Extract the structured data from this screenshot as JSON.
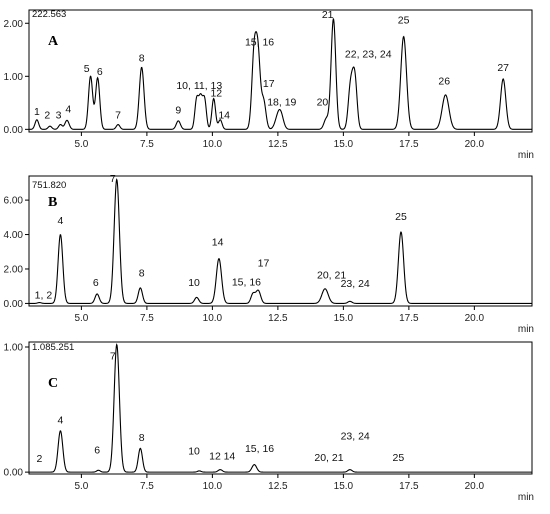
{
  "chart_data": [
    {
      "type": "line",
      "panel_label": "A",
      "header_value": "222.563",
      "xlabel": "min",
      "xlim": [
        3.0,
        22.2
      ],
      "ylim": [
        -0.05,
        2.25
      ],
      "x_ticks": [
        5.0,
        7.5,
        10.0,
        12.5,
        15.0,
        17.5,
        20.0
      ],
      "x_tick_labels": [
        "5.0",
        "7.5",
        "10.0",
        "12.5",
        "15.0",
        "17.5",
        "20.0"
      ],
      "y_ticks": [
        0.0,
        1.0,
        2.0
      ],
      "y_tick_labels": [
        "0.00",
        "1.00",
        "2.00"
      ],
      "baseline": 0.0,
      "peaks": [
        {
          "rt": 3.3,
          "height": 0.18,
          "width": 0.07
        },
        {
          "rt": 3.8,
          "height": 0.06,
          "width": 0.07
        },
        {
          "rt": 4.2,
          "height": 0.09,
          "width": 0.07
        },
        {
          "rt": 4.45,
          "height": 0.17,
          "width": 0.08
        },
        {
          "rt": 5.35,
          "height": 1.0,
          "width": 0.08
        },
        {
          "rt": 5.62,
          "height": 0.97,
          "width": 0.08
        },
        {
          "rt": 6.4,
          "height": 0.09,
          "width": 0.07
        },
        {
          "rt": 7.3,
          "height": 1.17,
          "width": 0.09
        },
        {
          "rt": 8.7,
          "height": 0.16,
          "width": 0.08
        },
        {
          "rt": 9.4,
          "height": 0.56,
          "width": 0.07
        },
        {
          "rt": 9.55,
          "height": 0.56,
          "width": 0.07
        },
        {
          "rt": 9.7,
          "height": 0.56,
          "width": 0.07
        },
        {
          "rt": 10.05,
          "height": 0.58,
          "width": 0.07
        },
        {
          "rt": 10.3,
          "height": 0.18,
          "width": 0.07
        },
        {
          "rt": 11.6,
          "height": 1.5,
          "width": 0.09
        },
        {
          "rt": 11.75,
          "height": 1.2,
          "width": 0.08
        },
        {
          "rt": 11.95,
          "height": 0.55,
          "width": 0.09
        },
        {
          "rt": 12.5,
          "height": 0.22,
          "width": 0.11
        },
        {
          "rt": 12.62,
          "height": 0.22,
          "width": 0.1
        },
        {
          "rt": 14.35,
          "height": 0.2,
          "width": 0.09
        },
        {
          "rt": 14.62,
          "height": 2.08,
          "width": 0.09
        },
        {
          "rt": 15.25,
          "height": 0.6,
          "width": 0.08
        },
        {
          "rt": 15.35,
          "height": 0.5,
          "width": 0.08
        },
        {
          "rt": 15.45,
          "height": 0.8,
          "width": 0.08
        },
        {
          "rt": 17.3,
          "height": 1.75,
          "width": 0.11
        },
        {
          "rt": 18.9,
          "height": 0.65,
          "width": 0.13
        },
        {
          "rt": 21.1,
          "height": 0.95,
          "width": 0.1
        }
      ],
      "labels": [
        {
          "text": "1",
          "x": 3.3,
          "y": 0.27
        },
        {
          "text": "2",
          "x": 3.7,
          "y": 0.2
        },
        {
          "text": "3",
          "x": 4.13,
          "y": 0.2
        },
        {
          "text": "4",
          "x": 4.5,
          "y": 0.32
        },
        {
          "text": "5",
          "x": 5.2,
          "y": 1.08
        },
        {
          "text": "6",
          "x": 5.7,
          "y": 1.02
        },
        {
          "text": "7",
          "x": 6.4,
          "y": 0.2
        },
        {
          "text": "8",
          "x": 7.3,
          "y": 1.28
        },
        {
          "text": "9",
          "x": 8.7,
          "y": 0.3
        },
        {
          "text": "10, 11, 13",
          "x": 9.5,
          "y": 0.76
        },
        {
          "text": "12",
          "x": 10.15,
          "y": 0.62
        },
        {
          "text": "14",
          "x": 10.45,
          "y": 0.2
        },
        {
          "text": "15, 16",
          "x": 11.8,
          "y": 1.58
        },
        {
          "text": "17",
          "x": 12.15,
          "y": 0.8
        },
        {
          "text": "18, 19",
          "x": 12.65,
          "y": 0.45
        },
        {
          "text": "20",
          "x": 14.2,
          "y": 0.45
        },
        {
          "text": "21",
          "x": 14.4,
          "y": 2.1
        },
        {
          "text": "22, 23, 24",
          "x": 15.95,
          "y": 1.35
        },
        {
          "text": "25",
          "x": 17.3,
          "y": 2.0
        },
        {
          "text": "26",
          "x": 18.85,
          "y": 0.85
        },
        {
          "text": "27",
          "x": 21.1,
          "y": 1.1
        }
      ]
    },
    {
      "type": "line",
      "panel_label": "B",
      "header_value": "751.820",
      "xlabel": "min",
      "xlim": [
        3.0,
        22.2
      ],
      "ylim": [
        -0.15,
        7.4
      ],
      "x_ticks": [
        5.0,
        7.5,
        10.0,
        12.5,
        15.0,
        17.5,
        20.0
      ],
      "x_tick_labels": [
        "5.0",
        "7.5",
        "10.0",
        "12.5",
        "15.0",
        "17.5",
        "20.0"
      ],
      "y_ticks": [
        0.0,
        2.0,
        4.0,
        6.0
      ],
      "y_tick_labels": [
        "0.00",
        "2.00",
        "4.00",
        "6.00"
      ],
      "baseline": 0.0,
      "peaks": [
        {
          "rt": 3.4,
          "height": 0.05,
          "width": 0.07
        },
        {
          "rt": 4.2,
          "height": 4.0,
          "width": 0.09
        },
        {
          "rt": 5.6,
          "height": 0.55,
          "width": 0.08
        },
        {
          "rt": 6.35,
          "height": 7.2,
          "width": 0.1
        },
        {
          "rt": 7.25,
          "height": 0.9,
          "width": 0.08
        },
        {
          "rt": 9.4,
          "height": 0.35,
          "width": 0.08
        },
        {
          "rt": 10.25,
          "height": 2.6,
          "width": 0.1
        },
        {
          "rt": 11.55,
          "height": 0.55,
          "width": 0.08
        },
        {
          "rt": 11.75,
          "height": 0.75,
          "width": 0.09
        },
        {
          "rt": 14.3,
          "height": 0.85,
          "width": 0.12
        },
        {
          "rt": 15.25,
          "height": 0.12,
          "width": 0.08
        },
        {
          "rt": 17.2,
          "height": 4.15,
          "width": 0.1
        }
      ],
      "labels": [
        {
          "text": "1, 2",
          "x": 3.55,
          "y": 0.3
        },
        {
          "text": "4",
          "x": 4.2,
          "y": 4.6
        },
        {
          "text": "6",
          "x": 5.55,
          "y": 1.0
        },
        {
          "text": "7",
          "x": 6.2,
          "y": 7.05
        },
        {
          "text": "8",
          "x": 7.3,
          "y": 1.55
        },
        {
          "text": "10",
          "x": 9.3,
          "y": 1.0
        },
        {
          "text": "14",
          "x": 10.2,
          "y": 3.35
        },
        {
          "text": "15, 16",
          "x": 11.3,
          "y": 1.05
        },
        {
          "text": "17",
          "x": 11.95,
          "y": 2.15
        },
        {
          "text": "20, 21",
          "x": 14.55,
          "y": 1.45
        },
        {
          "text": "23, 24",
          "x": 15.45,
          "y": 0.95
        },
        {
          "text": "25",
          "x": 17.2,
          "y": 4.85
        }
      ]
    },
    {
      "type": "line",
      "panel_label": "C",
      "header_value": "1.085.251",
      "xlabel": "min",
      "xlim": [
        3.0,
        22.2
      ],
      "ylim": [
        -0.015,
        1.04
      ],
      "x_ticks": [
        5.0,
        7.5,
        10.0,
        12.5,
        15.0,
        17.5,
        20.0
      ],
      "x_tick_labels": [
        "5.0",
        "7.5",
        "10.0",
        "12.5",
        "15.0",
        "17.5",
        "20.0"
      ],
      "y_ticks": [
        0.0,
        1.0
      ],
      "y_tick_labels": [
        "0.00",
        "1.00"
      ],
      "baseline": 0.0,
      "peaks": [
        {
          "rt": 4.2,
          "height": 0.33,
          "width": 0.09
        },
        {
          "rt": 5.65,
          "height": 0.015,
          "width": 0.07
        },
        {
          "rt": 6.35,
          "height": 1.02,
          "width": 0.1
        },
        {
          "rt": 7.25,
          "height": 0.19,
          "width": 0.08
        },
        {
          "rt": 9.5,
          "height": 0.01,
          "width": 0.07
        },
        {
          "rt": 10.3,
          "height": 0.02,
          "width": 0.08
        },
        {
          "rt": 11.6,
          "height": 0.06,
          "width": 0.09
        },
        {
          "rt": 15.25,
          "height": 0.02,
          "width": 0.08
        }
      ],
      "labels": [
        {
          "text": "2",
          "x": 3.4,
          "y": 0.08
        },
        {
          "text": "4",
          "x": 4.2,
          "y": 0.39
        },
        {
          "text": "6",
          "x": 5.6,
          "y": 0.15
        },
        {
          "text": "7",
          "x": 6.2,
          "y": 0.9
        },
        {
          "text": "8",
          "x": 7.3,
          "y": 0.25
        },
        {
          "text": "10",
          "x": 9.3,
          "y": 0.14
        },
        {
          "text": "12",
          "x": 10.1,
          "y": 0.1
        },
        {
          "text": "14",
          "x": 10.65,
          "y": 0.1
        },
        {
          "text": "15, 16",
          "x": 11.8,
          "y": 0.16
        },
        {
          "text": "20, 21",
          "x": 14.45,
          "y": 0.09
        },
        {
          "text": "23, 24",
          "x": 15.45,
          "y": 0.26
        },
        {
          "text": "25",
          "x": 17.1,
          "y": 0.09
        }
      ]
    }
  ]
}
